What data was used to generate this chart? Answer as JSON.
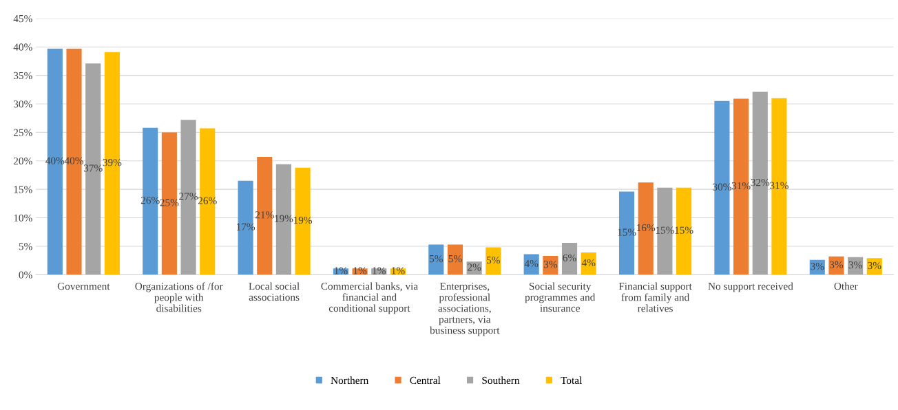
{
  "chart_data": {
    "type": "bar",
    "categories": [
      "Government",
      "Organizations of /for people with disabilities",
      "Local social associations",
      "Commercial banks, via financial and conditional support",
      "Enterprises, professional associations, partners, via business support",
      "Social security programmes and insurance",
      "Financial support from family and relatives",
      "No support received",
      "Other"
    ],
    "series": [
      {
        "name": "Northern",
        "color": "#5b9bd5",
        "values": [
          39.7,
          25.8,
          16.5,
          1.1,
          5.3,
          3.6,
          14.6,
          30.5,
          2.6
        ],
        "value_labels": [
          "40%",
          "26%",
          "17%",
          "1%",
          "5%",
          "4%",
          "15%",
          "30%",
          "3%"
        ]
      },
      {
        "name": "Central",
        "color": "#ed7d31",
        "values": [
          39.7,
          25.0,
          20.7,
          1.1,
          5.3,
          3.3,
          16.2,
          30.9,
          3.2
        ],
        "value_labels": [
          "40%",
          "25%",
          "21%",
          "1%",
          "5%",
          "3%",
          "16%",
          "31%",
          "3%"
        ]
      },
      {
        "name": "Southern",
        "color": "#a5a5a5",
        "values": [
          37.1,
          27.2,
          19.4,
          1.1,
          2.3,
          5.6,
          15.3,
          32.1,
          3.1
        ],
        "value_labels": [
          "37%",
          "27%",
          "19%",
          "1%",
          "2%",
          "6%",
          "15%",
          "32%",
          "3%"
        ]
      },
      {
        "name": "Total",
        "color": "#ffc000",
        "values": [
          39.1,
          25.7,
          18.8,
          1.1,
          4.8,
          3.9,
          15.3,
          31.0,
          2.9
        ],
        "value_labels": [
          "39%",
          "26%",
          "19%",
          "1%",
          "5%",
          "4%",
          "15%",
          "31%",
          "3%"
        ]
      }
    ],
    "ylim": [
      0,
      45
    ],
    "yticks": [
      {
        "value": 0,
        "label": "0%"
      },
      {
        "value": 5,
        "label": "5%"
      },
      {
        "value": 10,
        "label": "10%"
      },
      {
        "value": 15,
        "label": "15%"
      },
      {
        "value": 20,
        "label": "20%"
      },
      {
        "value": 25,
        "label": "25%"
      },
      {
        "value": 30,
        "label": "30%"
      },
      {
        "value": 35,
        "label": "35%"
      },
      {
        "value": 40,
        "label": "40%"
      },
      {
        "value": 45,
        "label": "45%"
      }
    ],
    "grid": "y",
    "legend": "bottom"
  }
}
